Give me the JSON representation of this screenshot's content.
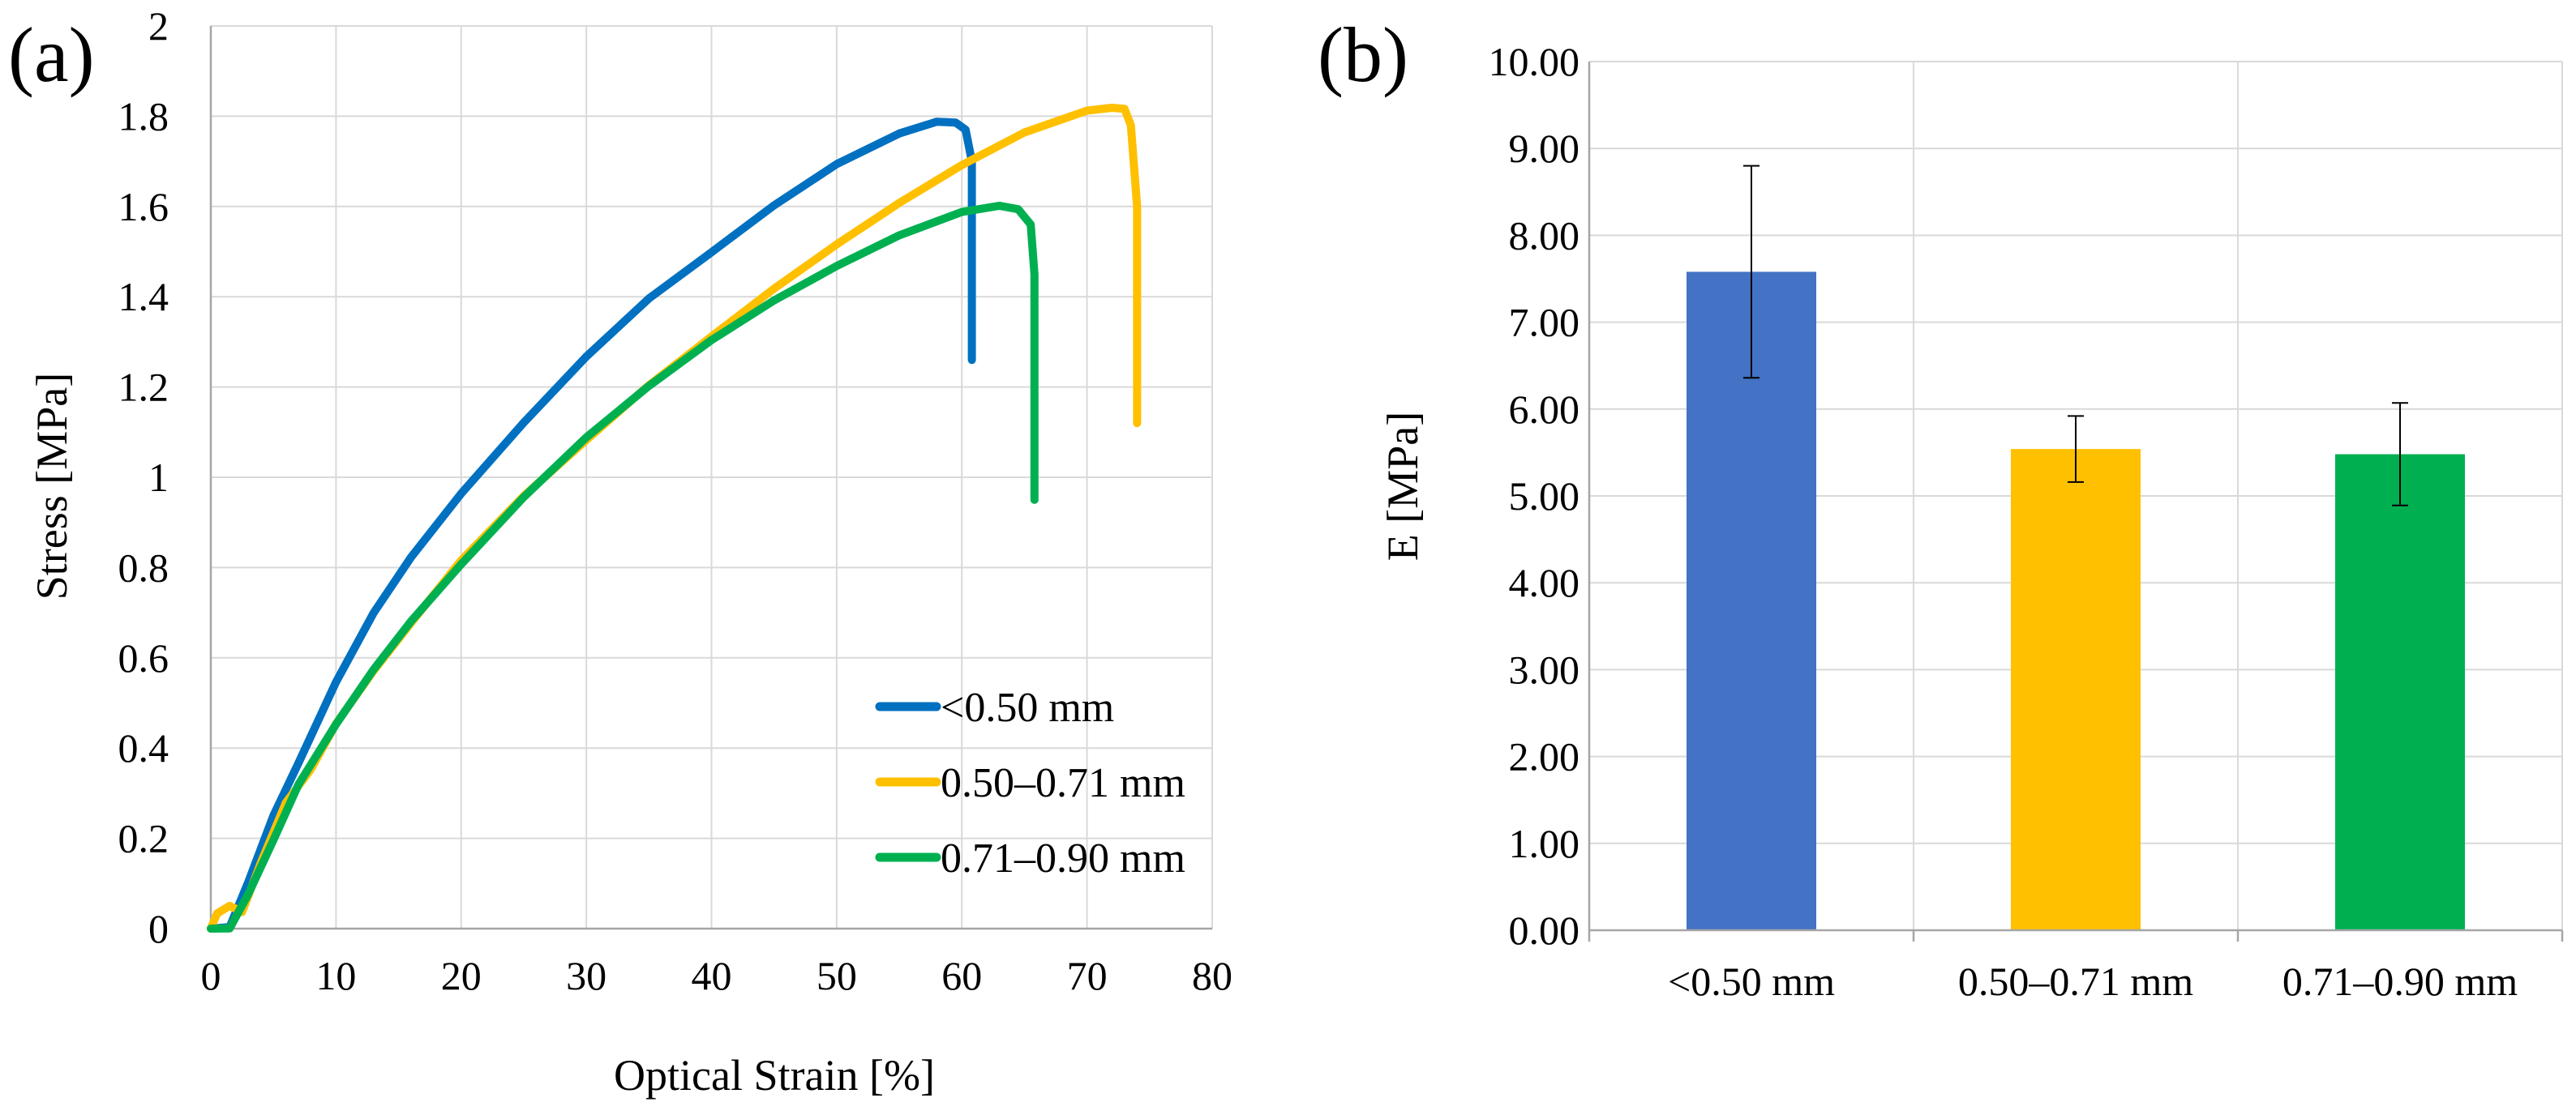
{
  "chart_data": [
    {
      "panel": "(a)",
      "type": "line",
      "title": "",
      "xlabel": "Optical Strain [%]",
      "ylabel": "Stress [MPa]",
      "xlim": [
        0,
        80
      ],
      "ylim": [
        0,
        2
      ],
      "x_ticks": [
        "0",
        "10",
        "20",
        "30",
        "40",
        "50",
        "60",
        "70",
        "80"
      ],
      "y_ticks": [
        "0",
        "0.2",
        "0.4",
        "0.6",
        "0.8",
        "1",
        "1.2",
        "1.4",
        "1.6",
        "1.8",
        "2"
      ],
      "grid": true,
      "legend_position": "bottom-right",
      "series": [
        {
          "name": "<0.50 mm",
          "color": "#0070C0",
          "x": [
            0,
            1.5,
            3,
            5,
            7,
            10,
            13,
            16,
            20,
            25,
            30,
            35,
            40,
            45,
            50,
            55,
            58,
            59.5,
            60.3,
            60.8,
            60.8
          ],
          "y": [
            0,
            0,
            0.1,
            0.25,
            0.37,
            0.55,
            0.7,
            0.82,
            0.96,
            1.12,
            1.27,
            1.4,
            1.5,
            1.6,
            1.69,
            1.76,
            1.79,
            1.79,
            1.77,
            1.7,
            1.26
          ]
        },
        {
          "name": "0.50–0.71 mm",
          "color": "#FFC000",
          "x": [
            0,
            0.5,
            1.5,
            2.5,
            4,
            6,
            8,
            10,
            13,
            16,
            20,
            25,
            30,
            35,
            40,
            45,
            50,
            55,
            60,
            65,
            70,
            72,
            73,
            73.5,
            74,
            74
          ],
          "y": [
            0,
            0.03,
            0.05,
            0.04,
            0.15,
            0.28,
            0.35,
            0.45,
            0.57,
            0.68,
            0.82,
            0.96,
            1.08,
            1.2,
            1.31,
            1.42,
            1.52,
            1.61,
            1.69,
            1.76,
            1.81,
            1.82,
            1.82,
            1.78,
            1.6,
            1.12
          ]
        },
        {
          "name": "0.71–0.90 mm",
          "color": "#00B050",
          "x": [
            0,
            1.5,
            3,
            5,
            7,
            10,
            13,
            16,
            20,
            25,
            30,
            35,
            40,
            45,
            50,
            55,
            60,
            63,
            64.5,
            65.5,
            65.8,
            65.8
          ],
          "y": [
            0,
            0,
            0.08,
            0.2,
            0.32,
            0.45,
            0.57,
            0.68,
            0.81,
            0.96,
            1.09,
            1.2,
            1.3,
            1.39,
            1.47,
            1.54,
            1.59,
            1.6,
            1.59,
            1.56,
            1.45,
            0.95
          ]
        }
      ]
    },
    {
      "panel": "(b)",
      "type": "bar",
      "title": "",
      "xlabel": "",
      "ylabel": "E [MPa]",
      "ylim": [
        0,
        10
      ],
      "y_ticks": [
        "0.00",
        "1.00",
        "2.00",
        "3.00",
        "4.00",
        "5.00",
        "6.00",
        "7.00",
        "8.00",
        "9.00",
        "10.00"
      ],
      "grid": true,
      "categories": [
        "<0.50 mm",
        "0.50–0.71 mm",
        "0.71–0.90 mm"
      ],
      "values": [
        7.58,
        5.54,
        5.48
      ],
      "error": [
        1.22,
        0.38,
        0.59
      ],
      "colors": [
        "#4472C4",
        "#FFC000",
        "#00B050"
      ]
    }
  ]
}
